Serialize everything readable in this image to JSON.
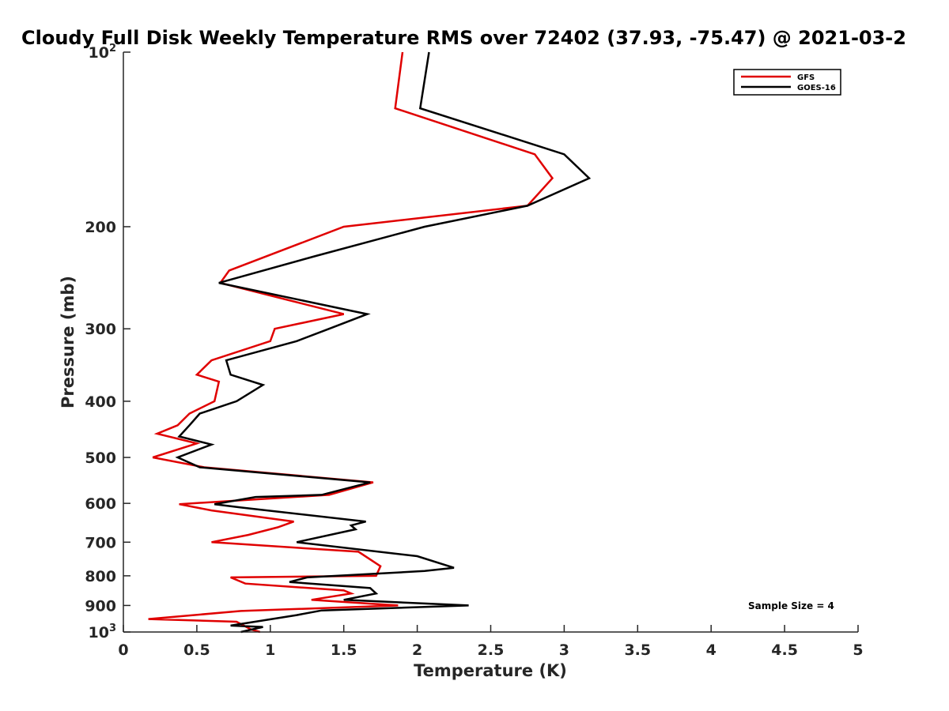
{
  "chart_data": {
    "type": "line",
    "orientation": "profile",
    "title": "Cloudy Full Disk Weekly Temperature RMS over 72402 (37.93, -75.47) @ 2021-03-2",
    "xlabel": "Temperature (K)",
    "ylabel": "Pressure (mb)",
    "xlim": [
      0,
      5
    ],
    "ylim": [
      100,
      1000
    ],
    "y_scale": "log",
    "y_reversed": true,
    "grid": false,
    "legend_position": "top-right",
    "x_ticks": [
      {
        "value": 0,
        "label": "0"
      },
      {
        "value": 0.5,
        "label": "0.5"
      },
      {
        "value": 1,
        "label": "1"
      },
      {
        "value": 1.5,
        "label": "1.5"
      },
      {
        "value": 2,
        "label": "2"
      },
      {
        "value": 2.5,
        "label": "2.5"
      },
      {
        "value": 3,
        "label": "3"
      },
      {
        "value": 3.5,
        "label": "3.5"
      },
      {
        "value": 4,
        "label": "4"
      },
      {
        "value": 4.5,
        "label": "4.5"
      },
      {
        "value": 5,
        "label": "5"
      }
    ],
    "y_ticks": [
      {
        "value": 100,
        "base": "10",
        "exp": "2"
      },
      {
        "value": 200,
        "label": "200"
      },
      {
        "value": 300,
        "label": "300"
      },
      {
        "value": 400,
        "label": "400"
      },
      {
        "value": 500,
        "label": "500"
      },
      {
        "value": 600,
        "label": "600"
      },
      {
        "value": 700,
        "label": "700"
      },
      {
        "value": 800,
        "label": "800"
      },
      {
        "value": 900,
        "label": "900"
      },
      {
        "value": 1000,
        "base": "10",
        "exp": "3"
      }
    ],
    "series": [
      {
        "name": "GFS",
        "color": "#e00000",
        "points": [
          [
            1.9,
            100
          ],
          [
            1.85,
            125
          ],
          [
            2.8,
            150
          ],
          [
            2.92,
            165
          ],
          [
            2.75,
            184
          ],
          [
            1.5,
            200
          ],
          [
            0.72,
            238
          ],
          [
            0.66,
            250
          ],
          [
            1.5,
            283
          ],
          [
            1.03,
            300
          ],
          [
            1.0,
            315
          ],
          [
            0.6,
            340
          ],
          [
            0.5,
            360
          ],
          [
            0.65,
            370
          ],
          [
            0.62,
            400
          ],
          [
            0.45,
            420
          ],
          [
            0.37,
            440
          ],
          [
            0.23,
            455
          ],
          [
            0.5,
            473
          ],
          [
            0.2,
            500
          ],
          [
            0.55,
            520
          ],
          [
            1.7,
            552
          ],
          [
            1.4,
            580
          ],
          [
            0.38,
            602
          ],
          [
            0.6,
            617
          ],
          [
            1.16,
            645
          ],
          [
            1.05,
            660
          ],
          [
            0.85,
            680
          ],
          [
            0.6,
            700
          ],
          [
            1.6,
            727
          ],
          [
            1.75,
            770
          ],
          [
            1.72,
            800
          ],
          [
            0.73,
            805
          ],
          [
            0.83,
            825
          ],
          [
            1.5,
            848
          ],
          [
            1.55,
            858
          ],
          [
            1.28,
            880
          ],
          [
            1.87,
            900
          ],
          [
            0.8,
            920
          ],
          [
            0.17,
            950
          ],
          [
            0.77,
            960
          ],
          [
            0.87,
            990
          ],
          [
            0.93,
            1000
          ]
        ]
      },
      {
        "name": "GOES-16",
        "color": "#000000",
        "points": [
          [
            2.08,
            100
          ],
          [
            2.02,
            125
          ],
          [
            3.0,
            150
          ],
          [
            3.17,
            165
          ],
          [
            2.75,
            184
          ],
          [
            2.05,
            200
          ],
          [
            1.3,
            225
          ],
          [
            0.65,
            250
          ],
          [
            1.66,
            283
          ],
          [
            1.4,
            300
          ],
          [
            1.18,
            315
          ],
          [
            0.7,
            340
          ],
          [
            0.73,
            360
          ],
          [
            0.95,
            375
          ],
          [
            0.77,
            400
          ],
          [
            0.52,
            420
          ],
          [
            0.45,
            440
          ],
          [
            0.38,
            460
          ],
          [
            0.6,
            475
          ],
          [
            0.37,
            500
          ],
          [
            0.52,
            520
          ],
          [
            1.68,
            552
          ],
          [
            1.35,
            580
          ],
          [
            0.9,
            585
          ],
          [
            0.62,
            602
          ],
          [
            0.8,
            610
          ],
          [
            1.65,
            645
          ],
          [
            1.55,
            655
          ],
          [
            1.58,
            665
          ],
          [
            1.18,
            700
          ],
          [
            2.0,
            740
          ],
          [
            2.25,
            775
          ],
          [
            2.05,
            785
          ],
          [
            1.25,
            805
          ],
          [
            1.13,
            820
          ],
          [
            1.68,
            840
          ],
          [
            1.72,
            858
          ],
          [
            1.5,
            880
          ],
          [
            2.35,
            900
          ],
          [
            1.35,
            918
          ],
          [
            1.18,
            935
          ],
          [
            0.73,
            975
          ],
          [
            0.95,
            980
          ],
          [
            0.8,
            1000
          ]
        ]
      }
    ],
    "annotation": "Sample Size = 4"
  }
}
